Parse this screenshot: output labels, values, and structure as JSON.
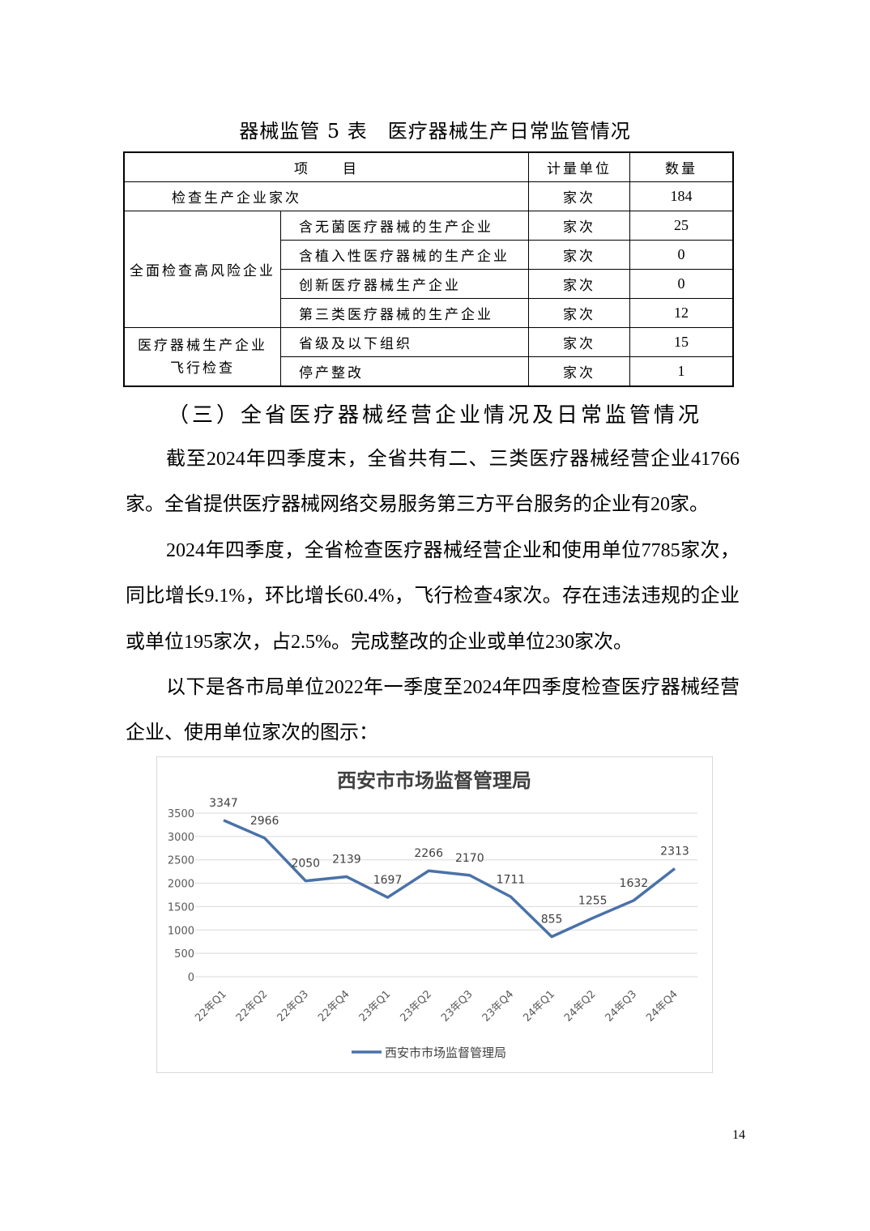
{
  "table": {
    "title": "器械监管 5 表　医疗器械生产日常监管情况",
    "headers": [
      "项　　目",
      "计量单位",
      "数量"
    ],
    "rows": [
      {
        "group": "检查生产企业家次",
        "item": "",
        "unit": "家次",
        "value": "184"
      },
      {
        "group": "全面检查高风险企业",
        "item": "含无菌医疗器械的生产企业",
        "unit": "家次",
        "value": "25"
      },
      {
        "group": "",
        "item": "含植入性医疗器械的生产企业",
        "unit": "家次",
        "value": "0"
      },
      {
        "group": "",
        "item": "创新医疗器械生产企业",
        "unit": "家次",
        "value": "0"
      },
      {
        "group": "",
        "item": "第三类医疗器械的生产企业",
        "unit": "家次",
        "value": "12"
      },
      {
        "group": "医疗器械生产企业飞行检查",
        "item": "省级及以下组织",
        "unit": "家次",
        "value": "15"
      },
      {
        "group": "",
        "item": "停产整改",
        "unit": "家次",
        "value": "1"
      }
    ],
    "group_flight_line1": "医疗器械生产企业",
    "group_flight_line2": "飞行检查"
  },
  "section_heading": "（三）全省医疗器械经营企业情况及日常监管情况",
  "paragraphs": [
    "截至2024年四季度末，全省共有二、三类医疗器械经营企业41766家。全省提供医疗器械网络交易服务第三方平台服务的企业有20家。",
    "2024年四季度，全省检查医疗器械经营企业和使用单位7785家次，同比增长9.1%，环比增长60.4%，飞行检查4家次。存在违法违规的企业或单位195家次，占2.5%。完成整改的企业或单位230家次。",
    "以下是各市局单位2022年一季度至2024年四季度检查医疗器械经营企业、使用单位家次的图示："
  ],
  "chart_data": {
    "type": "line",
    "title": "西安市市场监督管理局",
    "categories": [
      "22年Q1",
      "22年Q2",
      "22年Q3",
      "22年Q4",
      "23年Q1",
      "23年Q2",
      "23年Q3",
      "23年Q4",
      "24年Q1",
      "24年Q2",
      "24年Q3",
      "24年Q4"
    ],
    "series": [
      {
        "name": "西安市市场监督管理局",
        "values": [
          3347,
          2966,
          2050,
          2139,
          1697,
          2266,
          2170,
          1711,
          855,
          1255,
          1632,
          2313
        ],
        "color": "#4a72a8"
      }
    ],
    "ylim": [
      0,
      3500
    ],
    "yticks": [
      0,
      500,
      1000,
      1500,
      2000,
      2500,
      3000,
      3500
    ],
    "grid": true,
    "data_labels": true,
    "legend": "bottom"
  },
  "page_number": "14"
}
